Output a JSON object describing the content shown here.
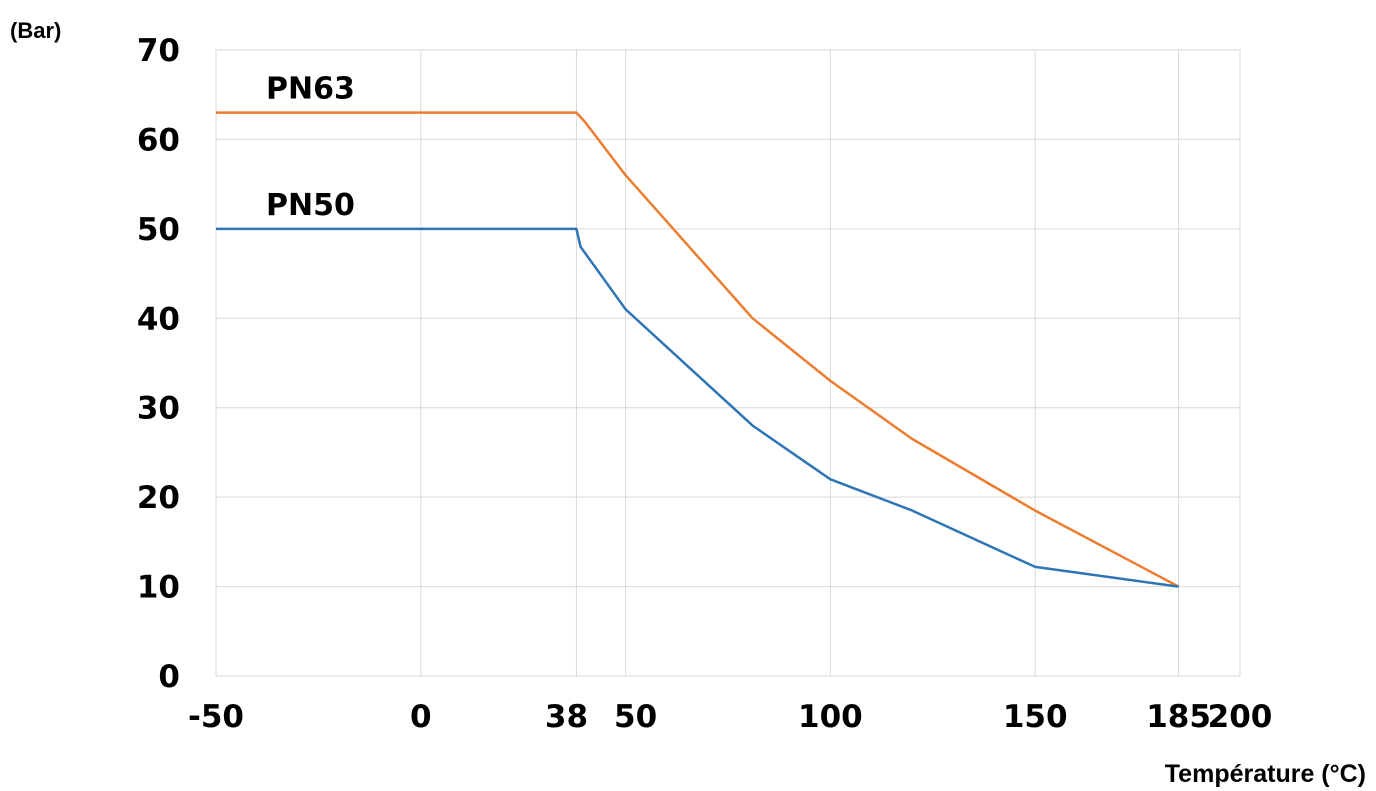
{
  "chart_data": {
    "type": "line",
    "title": "",
    "ylabel": "(Bar)",
    "xlabel": "Température (°C)",
    "ylim": [
      0,
      70
    ],
    "yticks": [
      0,
      10,
      20,
      30,
      40,
      50,
      60,
      70
    ],
    "xticks": [
      -50,
      0,
      38,
      50,
      100,
      150,
      185,
      200
    ],
    "xtick_labels": [
      "-50",
      "0",
      "38",
      "50",
      "100",
      "150",
      "185",
      "200"
    ],
    "grid": true,
    "legend": "none",
    "series": [
      {
        "name": "PN63",
        "color": "#ed7d31",
        "x": [
          -50,
          38,
          40,
          50,
          81,
          100,
          120,
          150,
          185
        ],
        "y": [
          63,
          63,
          62,
          56,
          40,
          33,
          26.5,
          18.5,
          10
        ]
      },
      {
        "name": "PN50",
        "color": "#2e75b6",
        "x": [
          -50,
          38,
          39,
          50,
          81,
          100,
          120,
          150,
          185
        ],
        "y": [
          50,
          50,
          48,
          41,
          28,
          22,
          18.5,
          12.2,
          10
        ]
      }
    ]
  }
}
